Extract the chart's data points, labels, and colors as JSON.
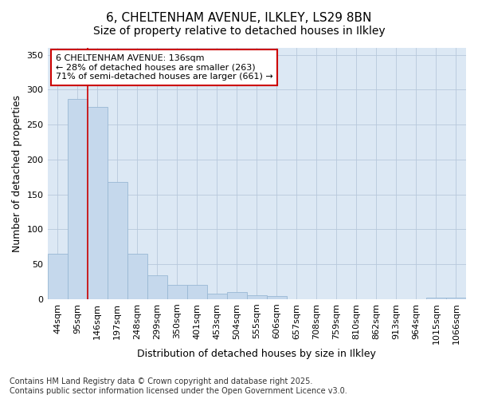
{
  "title_line1": "6, CHELTENHAM AVENUE, ILKLEY, LS29 8BN",
  "title_line2": "Size of property relative to detached houses in Ilkley",
  "categories": [
    "44sqm",
    "95sqm",
    "146sqm",
    "197sqm",
    "248sqm",
    "299sqm",
    "350sqm",
    "401sqm",
    "453sqm",
    "504sqm",
    "555sqm",
    "606sqm",
    "657sqm",
    "708sqm",
    "759sqm",
    "810sqm",
    "862sqm",
    "913sqm",
    "964sqm",
    "1015sqm",
    "1066sqm"
  ],
  "values": [
    65,
    287,
    275,
    168,
    65,
    34,
    20,
    20,
    8,
    10,
    5,
    4,
    0,
    0,
    0,
    0,
    0,
    0,
    0,
    2,
    2
  ],
  "bar_color": "#c5d8ec",
  "bar_edge_color": "#99b8d4",
  "xlabel": "Distribution of detached houses by size in Ilkley",
  "ylabel": "Number of detached properties",
  "ylim": [
    0,
    360
  ],
  "yticks": [
    0,
    50,
    100,
    150,
    200,
    250,
    300,
    350
  ],
  "vline_color": "#cc0000",
  "annotation_text": "6 CHELTENHAM AVENUE: 136sqm\n← 28% of detached houses are smaller (263)\n71% of semi-detached houses are larger (661) →",
  "annotation_box_color": "#ffffff",
  "annotation_box_edge": "#cc0000",
  "grid_color": "#b8c8dc",
  "plot_bg_color": "#dce8f4",
  "fig_bg_color": "#ffffff",
  "footer_text": "Contains HM Land Registry data © Crown copyright and database right 2025.\nContains public sector information licensed under the Open Government Licence v3.0.",
  "title_fontsize": 11,
  "subtitle_fontsize": 10,
  "axis_label_fontsize": 9,
  "tick_fontsize": 8,
  "footer_fontsize": 7,
  "annotation_fontsize": 8
}
